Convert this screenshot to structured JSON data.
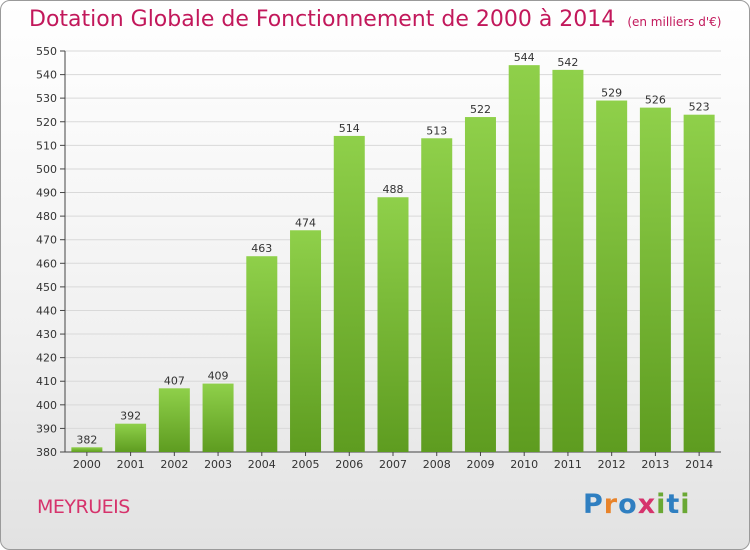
{
  "title": "Dotation Globale de Fonctionnement de 2000 à 2014",
  "subtitle": "(en milliers d'€)",
  "place": "MEYRUEIS",
  "logo_text": "Proxiti",
  "colors": {
    "bar": "#7dc03a",
    "bar_dark": "#5b9a1e",
    "title": "#c2185b",
    "grid": "#d9d9d9"
  },
  "chart_data": {
    "type": "bar",
    "title": "Dotation Globale de Fonctionnement de 2000 à 2014",
    "subtitle": "(en milliers d'€)",
    "xlabel": "",
    "ylabel": "",
    "categories": [
      "2000",
      "2001",
      "2002",
      "2003",
      "2004",
      "2005",
      "2006",
      "2007",
      "2008",
      "2009",
      "2010",
      "2011",
      "2012",
      "2013",
      "2014"
    ],
    "values": [
      382,
      392,
      407,
      409,
      463,
      474,
      514,
      488,
      513,
      522,
      544,
      542,
      529,
      526,
      523
    ],
    "ylim": [
      380,
      550
    ],
    "yticks": [
      380,
      390,
      400,
      410,
      420,
      430,
      440,
      450,
      460,
      470,
      480,
      490,
      500,
      510,
      520,
      530,
      540,
      550
    ],
    "grid": true
  }
}
